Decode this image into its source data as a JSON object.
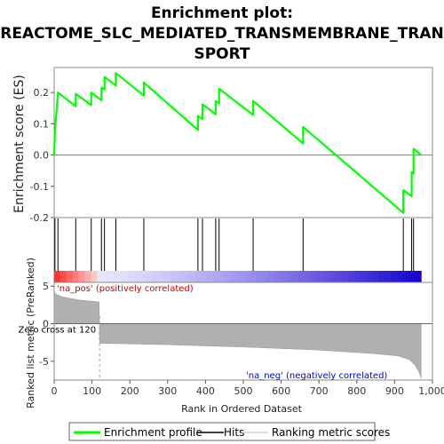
{
  "chart_data": {
    "type": "line",
    "title_lines": [
      "Enrichment plot:",
      "REACTOME_SLC_MEDIATED_TRANSMEMBRANE_TRAN",
      "SPORT"
    ],
    "xlabel": "Rank in Ordered Dataset",
    "ylabel_top": "Enrichment score (ES)",
    "ylabel_bottom": "Ranked list metric (PreRanked)",
    "xlim": [
      0,
      1000
    ],
    "x_ticks": [
      0,
      100,
      200,
      300,
      400,
      500,
      600,
      700,
      800,
      900,
      1000
    ],
    "x_tick_labels": [
      "0",
      "100",
      "200",
      "300",
      "400",
      "500",
      "600",
      "700",
      "800",
      "900",
      "1,000"
    ],
    "es_ylim": [
      -0.2,
      0.28
    ],
    "es_ticks": [
      -0.2,
      -0.1,
      0.0,
      0.1,
      0.2
    ],
    "es_tick_labels": [
      "-0.2",
      "-0.1",
      "0.0",
      "0.1",
      "0.2"
    ],
    "metric_ylim": [
      -7.5,
      5.5
    ],
    "metric_ticks": [
      5,
      0,
      -5
    ],
    "metric_tick_labels": [
      "5",
      "0",
      "-5"
    ],
    "n_genes": 970,
    "zero_cross": 120,
    "zero_cross_label": "Zero cross at 120",
    "pos_label": "'na_pos' (positively correlated)",
    "neg_label": "'na_neg' (negatively correlated)",
    "hits": [
      2,
      10,
      57,
      98,
      125,
      133,
      163,
      237,
      380,
      392,
      427,
      436,
      526,
      658,
      923,
      945,
      950
    ],
    "es_profile": [
      [
        0,
        0.0
      ],
      [
        2,
        0.08
      ],
      [
        10,
        0.2
      ],
      [
        57,
        0.156
      ],
      [
        57,
        0.196
      ],
      [
        98,
        0.16
      ],
      [
        98,
        0.2
      ],
      [
        125,
        0.175
      ],
      [
        125,
        0.215
      ],
      [
        133,
        0.21
      ],
      [
        133,
        0.25
      ],
      [
        163,
        0.222
      ],
      [
        163,
        0.262
      ],
      [
        237,
        0.19
      ],
      [
        237,
        0.232
      ],
      [
        380,
        0.08
      ],
      [
        380,
        0.125
      ],
      [
        392,
        0.115
      ],
      [
        392,
        0.162
      ],
      [
        427,
        0.13
      ],
      [
        427,
        0.172
      ],
      [
        436,
        0.165
      ],
      [
        436,
        0.212
      ],
      [
        526,
        0.128
      ],
      [
        526,
        0.173
      ],
      [
        658,
        0.037
      ],
      [
        658,
        0.09
      ],
      [
        923,
        -0.185
      ],
      [
        923,
        -0.112
      ],
      [
        945,
        -0.132
      ],
      [
        945,
        -0.055
      ],
      [
        950,
        -0.06
      ],
      [
        950,
        0.02
      ],
      [
        970,
        0.0
      ]
    ],
    "metric_knots": [
      [
        0,
        4.5
      ],
      [
        3,
        4.0
      ],
      [
        20,
        3.6
      ],
      [
        60,
        3.2
      ],
      [
        100,
        3.0
      ],
      [
        119,
        2.9
      ],
      [
        120,
        -2.3
      ],
      [
        121,
        -2.6
      ],
      [
        300,
        -2.8
      ],
      [
        500,
        -3.1
      ],
      [
        700,
        -3.5
      ],
      [
        850,
        -4.0
      ],
      [
        910,
        -4.3
      ],
      [
        940,
        -4.8
      ],
      [
        955,
        -5.6
      ],
      [
        965,
        -6.5
      ],
      [
        970,
        -7.3
      ]
    ],
    "colors": {
      "es_line": "#00ff00",
      "zero_line": "#808080",
      "metric_fill": "#b0b0b0",
      "hit_line": "#000000"
    },
    "legend": [
      {
        "label": "Enrichment profile",
        "color": "#00ff00"
      },
      {
        "label": "Hits",
        "color": "#000000"
      },
      {
        "label": "Ranking metric scores",
        "color": "#d3d3d3"
      }
    ]
  }
}
